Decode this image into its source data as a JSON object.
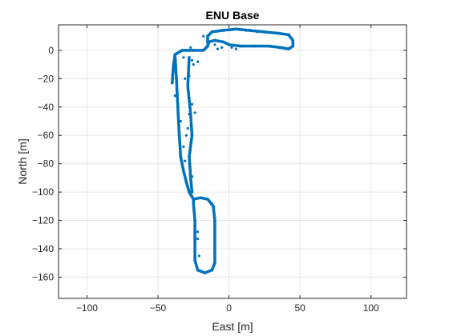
{
  "chart_data": {
    "type": "scatter",
    "title": "ENU Base",
    "xlabel": "East [m]",
    "ylabel": "North [m]",
    "xlim": [
      -120,
      125
    ],
    "ylim": [
      -175,
      18
    ],
    "xticks": [
      -100,
      -50,
      0,
      50,
      100
    ],
    "yticks": [
      -160,
      -140,
      -120,
      -100,
      -80,
      -60,
      -40,
      -20,
      0
    ],
    "xtick_labels": [
      "−100",
      "−50",
      "0",
      "50",
      "100"
    ],
    "ytick_labels": [
      "−160",
      "−140",
      "−120",
      "−100",
      "−80",
      "−60",
      "−40",
      "−20",
      "0"
    ],
    "grid": true,
    "marker_color": "#0072BD",
    "series": [
      {
        "path": [
          [
            -40,
            -23
          ],
          [
            -39,
            -10
          ],
          [
            -38,
            -3
          ],
          [
            -33,
            0
          ],
          [
            -25,
            0
          ],
          [
            -18,
            0
          ],
          [
            -15,
            3
          ],
          [
            -14,
            6
          ],
          [
            -10,
            7
          ],
          [
            -4,
            6
          ],
          [
            0,
            4
          ],
          [
            8,
            3
          ],
          [
            18,
            3
          ],
          [
            28,
            3
          ],
          [
            36,
            2
          ],
          [
            42,
            1
          ],
          [
            45,
            3
          ],
          [
            45,
            7
          ],
          [
            42,
            11
          ],
          [
            35,
            12
          ],
          [
            25,
            13
          ],
          [
            15,
            14
          ],
          [
            5,
            15
          ],
          [
            -5,
            14
          ],
          [
            -12,
            13
          ],
          [
            -15,
            10
          ],
          [
            -15,
            5
          ]
        ]
      },
      {
        "path": [
          [
            -38,
            -3
          ],
          [
            -37,
            -20
          ],
          [
            -36,
            -40
          ],
          [
            -35,
            -60
          ],
          [
            -34,
            -75
          ],
          [
            -32,
            -85
          ],
          [
            -30,
            -93
          ],
          [
            -28,
            -100
          ],
          [
            -25,
            -105
          ]
        ]
      },
      {
        "path": [
          [
            -25,
            -105
          ],
          [
            -20,
            -104
          ],
          [
            -15,
            -105
          ],
          [
            -11,
            -110
          ],
          [
            -10,
            -120
          ],
          [
            -10,
            -132
          ],
          [
            -10,
            -142
          ],
          [
            -10,
            -150
          ],
          [
            -12,
            -155
          ],
          [
            -17,
            -157
          ],
          [
            -22,
            -155
          ],
          [
            -24,
            -148
          ],
          [
            -24,
            -135
          ],
          [
            -24,
            -120
          ],
          [
            -25,
            -108
          ],
          [
            -25,
            -105
          ]
        ]
      },
      {
        "path": [
          [
            -28,
            -5
          ],
          [
            -29,
            -25
          ],
          [
            -27,
            -45
          ],
          [
            -26,
            -60
          ],
          [
            -28,
            -75
          ],
          [
            -27,
            -90
          ],
          [
            -26,
            -100
          ]
        ]
      },
      {
        "points": [
          [
            -31,
            -78
          ],
          [
            -33,
            -80
          ],
          [
            -30,
            -60
          ],
          [
            -29,
            -55
          ],
          [
            -28,
            -45
          ],
          [
            -24,
            -44
          ],
          [
            -26,
            -38
          ],
          [
            -29,
            -25
          ],
          [
            -28,
            -18
          ],
          [
            -31,
            -20
          ],
          [
            -32,
            -5
          ],
          [
            -26,
            -7
          ],
          [
            -27,
            2
          ],
          [
            -30,
            0
          ],
          [
            -22,
            -8
          ],
          [
            -25,
            -10
          ],
          [
            -36,
            -45
          ],
          [
            -38,
            -32
          ],
          [
            -22,
            -128
          ],
          [
            -22,
            -133
          ],
          [
            -21,
            -145
          ],
          [
            -24,
            -146
          ],
          [
            -18,
            10
          ],
          [
            -13,
            12
          ],
          [
            -10,
            4
          ],
          [
            5,
            1
          ],
          [
            2,
            2
          ],
          [
            -5,
            2
          ],
          [
            -8,
            1
          ],
          [
            12,
            14
          ],
          [
            20,
            13
          ],
          [
            -12,
            -108
          ],
          [
            -26,
            -89
          ],
          [
            -32,
            -68
          ],
          [
            -34,
            -50
          ]
        ]
      }
    ]
  }
}
